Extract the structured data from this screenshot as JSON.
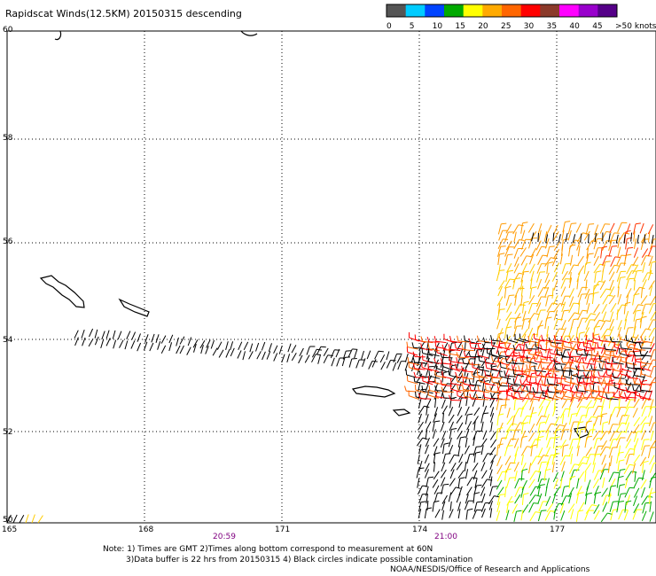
{
  "title": "Rapidscat Winds(12.5KM) 20150315 descending",
  "legend": {
    "colors": [
      "#555555",
      "#00ccff",
      "#0044ff",
      "#00aa00",
      "#ffff00",
      "#ffaa00",
      "#ff6600",
      "#ff0000",
      "#8b3a2a",
      "#ff00ff",
      "#9900cc",
      "#550088"
    ],
    "labels": [
      "0",
      "5",
      "10",
      "15",
      "20",
      "25",
      "30",
      "35",
      "40",
      "45",
      ">50 knots"
    ]
  },
  "axes": {
    "lat_labels": [
      "60",
      "58",
      "56",
      "54",
      "52",
      "50"
    ],
    "lon_labels": [
      "165",
      "168",
      "171",
      "174",
      "177"
    ],
    "time_labels": [
      "20:59",
      "21:00"
    ]
  },
  "notes": {
    "line1": "Note: 1) Times are GMT 2)Times along bottom correspond to measurement at 60N",
    "line2": "3)Data buffer is 22 hrs from 20150315 4) Black circles indicate possible contamination",
    "line3": "NOAA/NESDIS/Office of Research and Applications"
  }
}
